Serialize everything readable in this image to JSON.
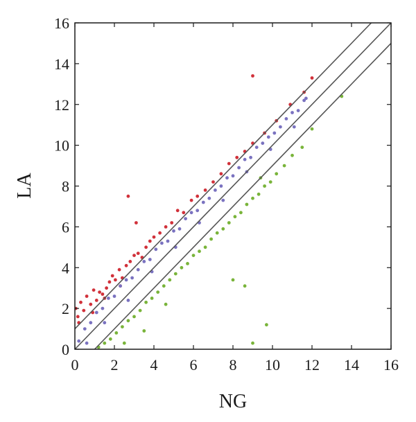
{
  "chart_data": {
    "type": "scatter",
    "title": "",
    "xlabel": "NG",
    "ylabel": "LA",
    "xlim": [
      0,
      16
    ],
    "ylim": [
      0,
      16
    ],
    "xticks": [
      "0",
      "2",
      "4",
      "6",
      "8",
      "10",
      "12",
      "14",
      "16"
    ],
    "yticks": [
      "0",
      "2",
      "4",
      "6",
      "8",
      "10",
      "12",
      "14",
      "16"
    ],
    "grid": false,
    "colors": {
      "up": "#d1313a",
      "unchanged": "#7a72c0",
      "down": "#79b43a",
      "line": "#555555"
    },
    "reference_lines": [
      {
        "slope": 1,
        "intercept": 1
      },
      {
        "slope": 1,
        "intercept": 0
      },
      {
        "slope": 1,
        "intercept": -1
      }
    ],
    "series": [
      {
        "color": "#d1313a",
        "x": [
          0.05,
          0.15,
          0.3,
          0.45,
          0.6,
          0.8,
          0.95,
          1.1,
          1.25,
          1.4,
          1.6,
          1.75,
          1.9,
          2.05,
          2.25,
          2.4,
          2.6,
          2.8,
          3.0,
          3.2,
          3.4,
          3.6,
          3.8,
          4.0,
          4.3,
          4.6,
          4.9,
          5.2,
          5.5,
          5.9,
          6.2,
          6.6,
          7.0,
          7.4,
          7.8,
          8.2,
          8.6,
          9.0,
          9.6,
          10.2,
          10.9,
          11.6,
          12.0,
          2.7,
          3.1,
          9.0,
          0.2,
          0.9,
          1.5,
          2.3
        ],
        "y": [
          2.0,
          1.6,
          2.3,
          1.9,
          2.6,
          2.2,
          2.9,
          2.4,
          2.8,
          2.7,
          3.0,
          3.3,
          3.6,
          3.4,
          3.9,
          3.5,
          4.1,
          4.3,
          4.6,
          4.7,
          4.5,
          5.0,
          5.3,
          5.5,
          5.7,
          6.0,
          6.2,
          6.8,
          6.7,
          7.3,
          7.5,
          7.8,
          8.2,
          8.6,
          9.1,
          9.4,
          9.7,
          10.1,
          10.6,
          11.2,
          12.0,
          12.6,
          13.3,
          7.5,
          6.2,
          13.4,
          1.3,
          1.8,
          2.5,
          3.1
        ]
      },
      {
        "color": "#7a72c0",
        "x": [
          0.2,
          0.5,
          0.8,
          1.1,
          1.4,
          1.7,
          2.0,
          2.3,
          2.6,
          2.9,
          3.2,
          3.5,
          3.8,
          4.1,
          4.4,
          4.7,
          5.0,
          5.3,
          5.6,
          5.9,
          6.2,
          6.5,
          6.8,
          7.1,
          7.4,
          7.7,
          8.0,
          8.3,
          8.6,
          8.9,
          9.2,
          9.5,
          9.8,
          10.1,
          10.4,
          10.7,
          11.0,
          11.3,
          11.6,
          0.6,
          1.5,
          2.7,
          3.9,
          5.1,
          6.3,
          7.5,
          8.7,
          9.9,
          11.1,
          11.7
        ],
        "y": [
          0.4,
          1.0,
          1.3,
          1.8,
          2.0,
          2.5,
          2.6,
          3.1,
          3.4,
          3.5,
          3.9,
          4.3,
          4.4,
          4.9,
          5.2,
          5.3,
          5.8,
          5.9,
          6.4,
          6.7,
          6.8,
          7.2,
          7.4,
          7.8,
          8.0,
          8.4,
          8.5,
          8.9,
          9.3,
          9.4,
          9.9,
          10.1,
          10.4,
          10.6,
          10.9,
          11.3,
          11.6,
          11.7,
          12.2,
          0.3,
          1.3,
          2.4,
          3.8,
          5.0,
          6.2,
          7.3,
          8.7,
          9.8,
          10.9,
          12.3
        ]
      },
      {
        "color": "#79b43a",
        "x": [
          1.2,
          1.5,
          1.8,
          2.1,
          2.4,
          2.7,
          3.0,
          3.3,
          3.6,
          3.9,
          4.2,
          4.5,
          4.8,
          5.1,
          5.4,
          5.7,
          6.0,
          6.3,
          6.6,
          6.9,
          7.2,
          7.5,
          7.8,
          8.1,
          8.4,
          8.7,
          9.0,
          9.3,
          9.6,
          9.9,
          10.2,
          10.6,
          11.0,
          11.5,
          12.0,
          13.5,
          9.7,
          9.0,
          8.6,
          8.0,
          9.4,
          2.5,
          3.5,
          4.6
        ],
        "y": [
          0.1,
          0.3,
          0.5,
          0.8,
          1.1,
          1.4,
          1.6,
          1.9,
          2.3,
          2.5,
          2.8,
          3.1,
          3.4,
          3.7,
          4.0,
          4.2,
          4.6,
          4.8,
          5.0,
          5.4,
          5.7,
          5.9,
          6.2,
          6.5,
          6.7,
          7.1,
          7.4,
          7.6,
          8.0,
          8.2,
          8.6,
          9.0,
          9.5,
          9.9,
          10.8,
          12.4,
          1.2,
          0.3,
          3.1,
          3.4,
          8.4,
          0.3,
          0.9,
          2.2
        ]
      }
    ]
  }
}
